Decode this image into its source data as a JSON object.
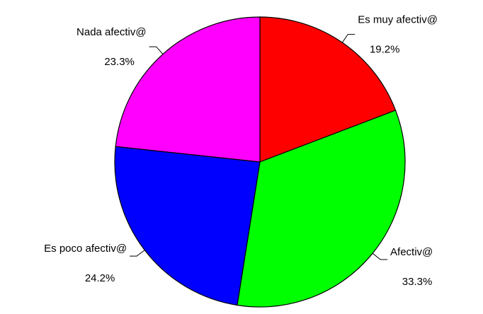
{
  "chart_data": {
    "type": "pie",
    "categories": [
      "Es muy afectiv@",
      "Afectiv@",
      "Es poco afectiv@",
      "Nada afectiv@"
    ],
    "values": [
      19.2,
      33.3,
      24.2,
      23.3
    ],
    "value_labels": [
      "19.2%",
      "33.3%",
      "24.2%",
      "23.3%"
    ],
    "colors": [
      "#ff0000",
      "#00ff00",
      "#0000ff",
      "#ff00ff"
    ]
  }
}
